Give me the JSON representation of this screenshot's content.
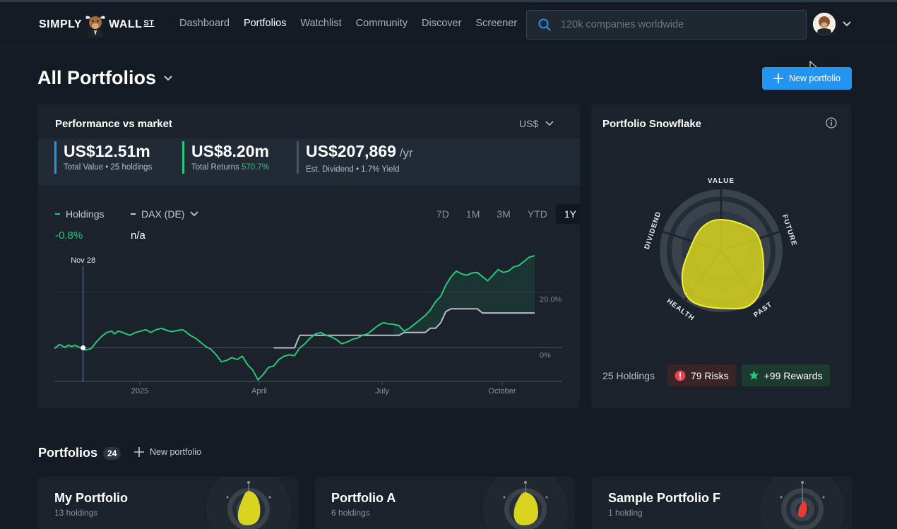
{
  "nav": {
    "logo_left": "SIMPLY",
    "logo_right": "WALL",
    "logo_st": "ST",
    "links": [
      "Dashboard",
      "Portfolios",
      "Watchlist",
      "Community",
      "Discover",
      "Screener"
    ],
    "active_link": "Portfolios",
    "search_placeholder": "120k companies worldwide"
  },
  "page": {
    "title": "All Portfolios",
    "new_button": "New portfolio"
  },
  "performance": {
    "title": "Performance vs market",
    "currency": "US$",
    "stats": [
      {
        "value": "US$12.51m",
        "label": "Total Value • 25 holdings",
        "color": "#2394f0"
      },
      {
        "value": "US$8.20m",
        "label": "Total Returns",
        "label_highlight": "570.7%",
        "color": "#25c978"
      },
      {
        "value": "US$207,869",
        "unit": " /yr",
        "label": "Est. Dividend • 1.7% Yield",
        "color": "#4a5260"
      }
    ],
    "legend": {
      "holdings_label": "Holdings",
      "holdings_value": "-0.8%",
      "market_label": "DAX (DE)",
      "market_value": "n/a"
    },
    "ranges": [
      "7D",
      "1M",
      "3M",
      "YTD",
      "1Y"
    ],
    "selected_range": "1Y"
  },
  "chart_data": {
    "type": "line",
    "hover_label": "Nov 28",
    "x_ticks": [
      "2025",
      "April",
      "July",
      "October"
    ],
    "y_ticks": [
      "20.0%",
      "0%"
    ],
    "ylim": [
      -12,
      33
    ],
    "series": [
      {
        "name": "Holdings",
        "color": "#25c978",
        "x": [
          0,
          4,
          8,
          11,
          13,
          16,
          20,
          24,
          28,
          32,
          36,
          40,
          44,
          46,
          49,
          52,
          55,
          58,
          62,
          66,
          70,
          74,
          78,
          82,
          86,
          90,
          94,
          98,
          100,
          104,
          108,
          112,
          116,
          120,
          124,
          128,
          132,
          136,
          140,
          144,
          148,
          152,
          156,
          160,
          164,
          168,
          172,
          176,
          180,
          184,
          188,
          192,
          196,
          200,
          204,
          208,
          212,
          216,
          220,
          224,
          228,
          232,
          236,
          240,
          244,
          248,
          252,
          256,
          260,
          264,
          268,
          272,
          276,
          280,
          284,
          288,
          292,
          296,
          300,
          304,
          308,
          312,
          316,
          320,
          324,
          328,
          332,
          336,
          340,
          344,
          348,
          352,
          356,
          360,
          364,
          368
        ],
        "y": [
          -0.2,
          1.2,
          0.2,
          1.0,
          0.5,
          0.9,
          0.0,
          -0.8,
          -0.3,
          2.0,
          4.0,
          5.5,
          6.0,
          5.0,
          6.0,
          5.6,
          5.0,
          4.5,
          5.5,
          6.0,
          6.5,
          5.5,
          6.5,
          7.0,
          6.3,
          5.8,
          6.2,
          6.5,
          6.0,
          4.5,
          3.5,
          2.0,
          0.5,
          -0.5,
          -2.5,
          -5.0,
          -4.5,
          -3.5,
          -4.2,
          -3.0,
          -6.0,
          -8.0,
          -11.5,
          -9.5,
          -7.0,
          -6.5,
          -4.2,
          -3.0,
          -2.5,
          -2.8,
          0.0,
          1.5,
          3.5,
          5.0,
          5.5,
          4.5,
          4.0,
          3.0,
          1.5,
          2.0,
          3.0,
          3.5,
          4.5,
          5.0,
          6.5,
          8.0,
          9.0,
          8.6,
          8.4,
          8.0,
          6.0,
          7.0,
          8.5,
          10.0,
          11.5,
          13.5,
          16.5,
          18.5,
          22.5,
          25.5,
          27.5,
          26.5,
          26.0,
          26.8,
          27.0,
          25.5,
          24.0,
          26.0,
          28.0,
          27.0,
          27.5,
          29.0,
          29.5,
          31.0,
          32.5,
          33.0
        ]
      },
      {
        "name": "DAX (DE)",
        "color": "#b8bdc4",
        "x": [
          0,
          4,
          8,
          11,
          13,
          16,
          20,
          24,
          28,
          32,
          36,
          40,
          44,
          46,
          49,
          52,
          55,
          58,
          62,
          66,
          70,
          74,
          78,
          82,
          86,
          90,
          94,
          98,
          100,
          104,
          108,
          112,
          116,
          120,
          124,
          128,
          132,
          136,
          140,
          144,
          148,
          152,
          156,
          160,
          164,
          168,
          172,
          176,
          180,
          184,
          188,
          192,
          196,
          200,
          204,
          208,
          212,
          216,
          220,
          224,
          228,
          232,
          236,
          240,
          244,
          248,
          252,
          256,
          260,
          264,
          268,
          272,
          276,
          280,
          284,
          288,
          292,
          296,
          300,
          304,
          308,
          312,
          316,
          320,
          324,
          328,
          332,
          336,
          340,
          344,
          348,
          352,
          356,
          360,
          364,
          368
        ],
        "y": [
          null,
          null,
          null,
          null,
          null,
          null,
          null,
          null,
          null,
          null,
          null,
          null,
          null,
          null,
          null,
          null,
          null,
          null,
          null,
          null,
          null,
          null,
          null,
          null,
          null,
          null,
          null,
          null,
          null,
          null,
          null,
          null,
          null,
          null,
          null,
          null,
          null,
          null,
          null,
          null,
          null,
          null,
          null,
          null,
          null,
          0.0,
          0.0,
          0.0,
          0.0,
          0.0,
          4.5,
          4.5,
          4.5,
          4.5,
          4.5,
          4.5,
          4.5,
          4.5,
          4.5,
          4.5,
          4.5,
          4.5,
          4.5,
          4.5,
          4.5,
          4.5,
          4.5,
          4.5,
          4.5,
          4.5,
          5.5,
          5.5,
          5.5,
          5.5,
          5.5,
          7.0,
          7.0,
          9.0,
          13.0,
          14.0,
          14.0,
          14.0,
          14.0,
          14.0,
          14.0,
          12.5,
          12.5,
          12.5,
          12.5,
          12.5,
          12.5,
          12.5,
          12.5,
          12.5,
          12.5,
          12.5
        ]
      }
    ]
  },
  "snowflake": {
    "title": "Portfolio Snowflake",
    "axes": [
      "VALUE",
      "FUTURE",
      "PAST",
      "HEALTH",
      "DIVIDEND"
    ],
    "holdings": "25 Holdings",
    "risks": "79 Risks",
    "rewards": "+99 Rewards"
  },
  "portfolios": {
    "title": "Portfolios",
    "count": "24",
    "new_label": "New portfolio",
    "cards": [
      {
        "title": "My Portfolio",
        "subtitle": "13 holdings",
        "flake": "#d8d41f"
      },
      {
        "title": "Portfolio A",
        "subtitle": "6 holdings",
        "flake": "#d8d41f"
      },
      {
        "title": "Sample Portfolio F",
        "subtitle": "1 holding",
        "flake": "#e83a36"
      }
    ]
  }
}
